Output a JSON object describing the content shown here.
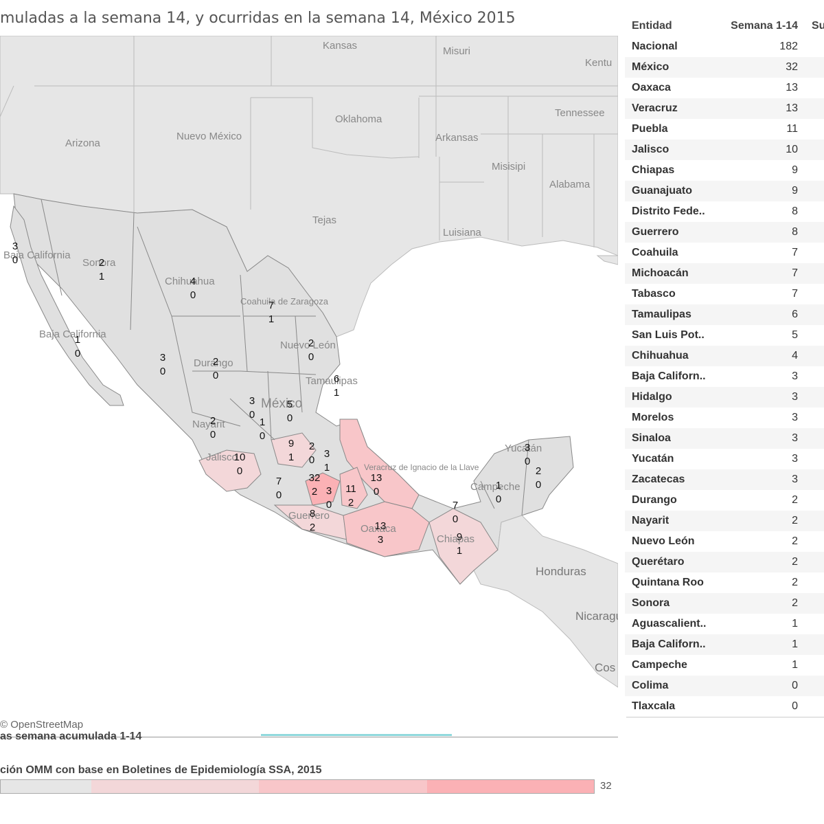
{
  "title": "muladas a la semana 14, y ocurridas en la semana 14, México 2015",
  "attribution": "© OpenStreetMap",
  "legend": {
    "title": "as semana acumulada 1-14",
    "subtitle": "ción OMM con base en Boletines de Epidemiología SSA, 2015",
    "max": "32",
    "colors": [
      "#e6e6e6",
      "#f3d7d9",
      "#f8c6c9",
      "#fbb1b5"
    ]
  },
  "table": {
    "headers": [
      "Entidad",
      "Semana 1-14",
      "Su"
    ],
    "rows": [
      {
        "entidad": "Nacional",
        "valor": "182"
      },
      {
        "entidad": "México",
        "valor": "32"
      },
      {
        "entidad": "Oaxaca",
        "valor": "13"
      },
      {
        "entidad": "Veracruz",
        "valor": "13"
      },
      {
        "entidad": "Puebla",
        "valor": "11"
      },
      {
        "entidad": "Jalisco",
        "valor": "10"
      },
      {
        "entidad": "Chiapas",
        "valor": "9"
      },
      {
        "entidad": "Guanajuato",
        "valor": "9"
      },
      {
        "entidad": "Distrito Fede..",
        "valor": "8"
      },
      {
        "entidad": "Guerrero",
        "valor": "8"
      },
      {
        "entidad": "Coahuila",
        "valor": "7"
      },
      {
        "entidad": "Michoacán",
        "valor": "7"
      },
      {
        "entidad": "Tabasco",
        "valor": "7"
      },
      {
        "entidad": "Tamaulipas",
        "valor": "6"
      },
      {
        "entidad": "San Luis Pot..",
        "valor": "5"
      },
      {
        "entidad": "Chihuahua",
        "valor": "4"
      },
      {
        "entidad": "Baja Californ..",
        "valor": "3"
      },
      {
        "entidad": "Hidalgo",
        "valor": "3"
      },
      {
        "entidad": "Morelos",
        "valor": "3"
      },
      {
        "entidad": "Sinaloa",
        "valor": "3"
      },
      {
        "entidad": "Yucatán",
        "valor": "3"
      },
      {
        "entidad": "Zacatecas",
        "valor": "3"
      },
      {
        "entidad": "Durango",
        "valor": "2"
      },
      {
        "entidad": "Nayarit",
        "valor": "2"
      },
      {
        "entidad": "Nuevo León",
        "valor": "2"
      },
      {
        "entidad": "Querétaro",
        "valor": "2"
      },
      {
        "entidad": "Quintana Roo",
        "valor": "2"
      },
      {
        "entidad": "Sonora",
        "valor": "2"
      },
      {
        "entidad": "Aguascalient..",
        "valor": "1"
      },
      {
        "entidad": "Baja Californ..",
        "valor": "1"
      },
      {
        "entidad": "Campeche",
        "valor": "1"
      },
      {
        "entidad": "Colima",
        "valor": "0"
      },
      {
        "entidad": "Tlaxcala",
        "valor": "0"
      }
    ]
  },
  "map_place_labels": [
    "Kansas",
    "Misuri",
    "Kentu",
    "Oklahoma",
    "Tennessee",
    "Arizona",
    "Nuevo México",
    "Arkansas",
    "Misisipi",
    "Alabama",
    "Tejas",
    "Luisiana",
    "Baja California",
    "Sonora",
    "Chihuahua",
    "Coahuila de Zaragoza",
    "Baja California",
    "Nuevo León",
    "Durango",
    "Tamaulipas",
    "México",
    "Nayarit",
    "Jalisco",
    "Veracruz de Ignacio de la Llave",
    "Guerrero",
    "Oaxaca",
    "Chiapas",
    "Campeche",
    "Yucatán",
    "Honduras",
    "Nicaragua",
    "Cos"
  ],
  "map_values": [
    {
      "estado": "Baja California",
      "acumulado": "3",
      "semana": "0"
    },
    {
      "estado": "Sonora",
      "acumulado": "2",
      "semana": "1"
    },
    {
      "estado": "Chihuahua",
      "acumulado": "4",
      "semana": "0"
    },
    {
      "estado": "Coahuila",
      "acumulado": "7",
      "semana": "1"
    },
    {
      "estado": "Baja California Sur",
      "acumulado": "1",
      "semana": "0"
    },
    {
      "estado": "Nuevo León",
      "acumulado": "2",
      "semana": "0"
    },
    {
      "estado": "Sinaloa",
      "acumulado": "3",
      "semana": "0"
    },
    {
      "estado": "Durango",
      "acumulado": "2",
      "semana": "0"
    },
    {
      "estado": "Tamaulipas",
      "acumulado": "6",
      "semana": "1"
    },
    {
      "estado": "Zacatecas",
      "acumulado": "3",
      "semana": "0"
    },
    {
      "estado": "San Luis Potosí",
      "acumulado": "5",
      "semana": "0"
    },
    {
      "estado": "Aguascalientes",
      "acumulado": "1",
      "semana": "0"
    },
    {
      "estado": "Nayarit",
      "acumulado": "2",
      "semana": "0"
    },
    {
      "estado": "Guanajuato",
      "acumulado": "9",
      "semana": "1"
    },
    {
      "estado": "Querétaro",
      "acumulado": "2",
      "semana": "0"
    },
    {
      "estado": "Hidalgo",
      "acumulado": "3",
      "semana": "1"
    },
    {
      "estado": "Jalisco",
      "acumulado": "10",
      "semana": "0"
    },
    {
      "estado": "Veracruz",
      "acumulado": "13",
      "semana": "0"
    },
    {
      "estado": "Michoacán",
      "acumulado": "7",
      "semana": "0"
    },
    {
      "estado": "México",
      "acumulado": "32",
      "semana": "2"
    },
    {
      "estado": "Morelos",
      "acumulado": "3",
      "semana": "0"
    },
    {
      "estado": "Puebla",
      "acumulado": "11",
      "semana": "2"
    },
    {
      "estado": "Guerrero",
      "acumulado": "8",
      "semana": "2"
    },
    {
      "estado": "Oaxaca",
      "acumulado": "13",
      "semana": "3"
    },
    {
      "estado": "Tabasco",
      "acumulado": "7",
      "semana": "0"
    },
    {
      "estado": "Chiapas",
      "acumulado": "9",
      "semana": "1"
    },
    {
      "estado": "Campeche",
      "acumulado": "1",
      "semana": "0"
    },
    {
      "estado": "Yucatán",
      "acumulado": "3",
      "semana": "0"
    },
    {
      "estado": "Quintana Roo",
      "acumulado": "2",
      "semana": "0"
    }
  ]
}
